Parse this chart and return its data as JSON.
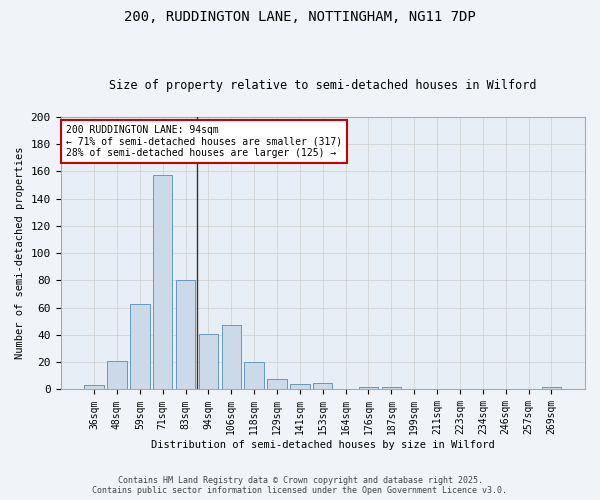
{
  "title1": "200, RUDDINGTON LANE, NOTTINGHAM, NG11 7DP",
  "title2": "Size of property relative to semi-detached houses in Wilford",
  "xlabel": "Distribution of semi-detached houses by size in Wilford",
  "ylabel": "Number of semi-detached properties",
  "categories": [
    "36sqm",
    "48sqm",
    "59sqm",
    "71sqm",
    "83sqm",
    "94sqm",
    "106sqm",
    "118sqm",
    "129sqm",
    "141sqm",
    "153sqm",
    "164sqm",
    "176sqm",
    "187sqm",
    "199sqm",
    "211sqm",
    "223sqm",
    "234sqm",
    "246sqm",
    "257sqm",
    "269sqm"
  ],
  "values": [
    3,
    21,
    63,
    157,
    80,
    41,
    47,
    20,
    8,
    4,
    5,
    0,
    2,
    2,
    0,
    0,
    0,
    0,
    0,
    0,
    2
  ],
  "bar_color": "#ccd9e8",
  "bar_edge_color": "#6699bb",
  "highlight_line_color": "#333333",
  "annotation_text": "200 RUDDINGTON LANE: 94sqm\n← 71% of semi-detached houses are smaller (317)\n28% of semi-detached houses are larger (125) →",
  "annotation_box_color": "#ffffff",
  "annotation_box_edge": "#cc0000",
  "ylim": [
    0,
    200
  ],
  "yticks": [
    0,
    20,
    40,
    60,
    80,
    100,
    120,
    140,
    160,
    180,
    200
  ],
  "grid_color": "#cccccc",
  "background_color": "#e8eef5",
  "fig_bg_color": "#f0f4f8",
  "footer1": "Contains HM Land Registry data © Crown copyright and database right 2025.",
  "footer2": "Contains public sector information licensed under the Open Government Licence v3.0."
}
